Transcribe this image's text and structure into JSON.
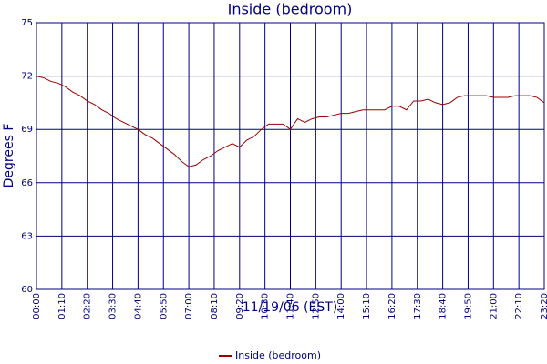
{
  "chart_data": {
    "type": "line",
    "title": "Inside (bedroom)",
    "xlabel": "11/19/06 (EST)",
    "ylabel": "Degrees F",
    "x": [
      "00:00",
      "00:20",
      "00:40",
      "01:00",
      "01:20",
      "01:40",
      "02:00",
      "02:20",
      "02:40",
      "03:00",
      "03:20",
      "03:40",
      "04:00",
      "04:20",
      "04:40",
      "05:00",
      "05:20",
      "05:40",
      "06:00",
      "06:20",
      "06:40",
      "07:00",
      "07:20",
      "07:40",
      "08:00",
      "08:20",
      "08:40",
      "09:00",
      "09:20",
      "09:40",
      "10:00",
      "10:20",
      "10:40",
      "11:00",
      "11:20",
      "11:40",
      "12:00",
      "12:20",
      "12:40",
      "13:00",
      "13:20",
      "13:40",
      "14:00",
      "14:20",
      "14:40",
      "15:00",
      "15:20",
      "15:40",
      "16:00",
      "16:20",
      "16:40",
      "17:00",
      "17:20",
      "17:40",
      "18:00",
      "18:20",
      "18:40",
      "19:00",
      "19:20",
      "19:40",
      "20:00",
      "20:20",
      "20:40",
      "21:00",
      "21:20",
      "21:40",
      "22:00",
      "22:20",
      "22:40",
      "23:00",
      "23:20"
    ],
    "series": [
      {
        "name": "Inside (bedroom)",
        "color": "#990000",
        "values": [
          72.0,
          71.9,
          71.7,
          71.6,
          71.4,
          71.1,
          70.9,
          70.6,
          70.4,
          70.1,
          69.9,
          69.6,
          69.4,
          69.2,
          69.0,
          68.7,
          68.5,
          68.2,
          67.9,
          67.6,
          67.2,
          66.9,
          67.0,
          67.3,
          67.5,
          67.8,
          68.0,
          68.2,
          68.0,
          68.4,
          68.6,
          69.0,
          69.3,
          69.3,
          69.3,
          69.0,
          69.6,
          69.4,
          69.6,
          69.7,
          69.7,
          69.8,
          69.9,
          69.9,
          70.0,
          70.1,
          70.1,
          70.1,
          70.1,
          70.3,
          70.3,
          70.1,
          70.6,
          70.6,
          70.7,
          70.5,
          70.4,
          70.5,
          70.8,
          70.9,
          70.9,
          70.9,
          70.9,
          70.8,
          70.8,
          70.8,
          70.9,
          70.9,
          70.9,
          70.8,
          70.5
        ]
      }
    ],
    "xlim": [
      "00:00",
      "23:20"
    ],
    "xticks": [
      "00:00",
      "01:10",
      "02:20",
      "03:30",
      "04:40",
      "05:50",
      "07:00",
      "08:10",
      "09:20",
      "10:30",
      "11:40",
      "12:50",
      "14:00",
      "15:10",
      "16:20",
      "17:30",
      "18:40",
      "19:50",
      "21:00",
      "22:10",
      "23:20"
    ],
    "ylim": [
      60,
      75
    ],
    "yticks": [
      60,
      63,
      66,
      69,
      72,
      75
    ],
    "grid": true,
    "legend": "bottom"
  }
}
